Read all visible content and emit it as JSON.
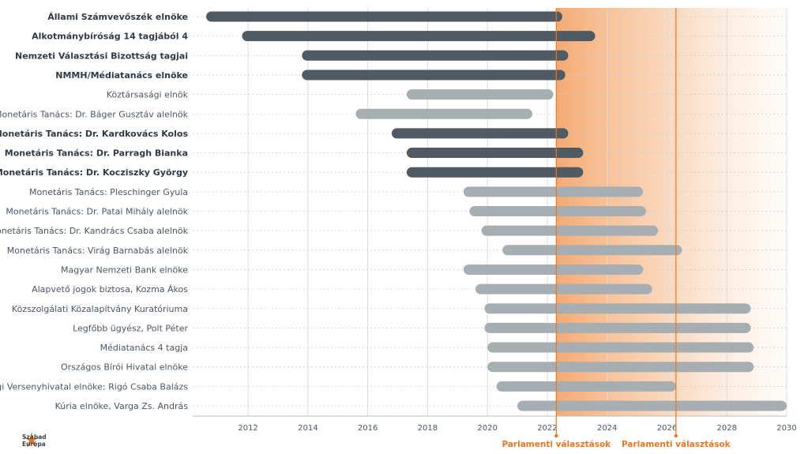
{
  "chart_data": {
    "type": "bar",
    "orientation": "horizontal-range",
    "title": "",
    "xlabel": "",
    "ylabel": "",
    "xlim": [
      2010,
      2030
    ],
    "x_ticks": [
      2012,
      2014,
      2016,
      2018,
      2020,
      2022,
      2024,
      2026,
      2028,
      2030
    ],
    "grid": true,
    "colors": {
      "bold_bar": "#4f5a63",
      "light_bar": "#a7aeb1",
      "future_shade": "#f3a66b",
      "annotation_line": "#e87722"
    },
    "future_shade_start": 2022.3,
    "rows": [
      {
        "label": "Állami Számvevőszék elnöke",
        "start": 2010.6,
        "end": 2022.5,
        "bold": true
      },
      {
        "label": "Alkotmánybíróság 14 tagjából 4",
        "start": 2011.8,
        "end": 2023.6,
        "bold": true
      },
      {
        "label": "Nemzeti Választási Bizottság tagjai",
        "start": 2013.8,
        "end": 2022.7,
        "bold": true
      },
      {
        "label": "NMMH/Médiatanács elnöke",
        "start": 2013.8,
        "end": 2022.6,
        "bold": true
      },
      {
        "label": "Köztársasági elnök",
        "start": 2017.3,
        "end": 2022.2,
        "bold": false
      },
      {
        "label": "Monetáris Tanács: Dr. Báger Gusztáv alelnök",
        "start": 2015.6,
        "end": 2021.5,
        "bold": false
      },
      {
        "label": "Monetáris Tanács: Dr. Kardkovács Kolos",
        "start": 2016.8,
        "end": 2022.7,
        "bold": true
      },
      {
        "label": "Monetáris Tanács: Dr. Parragh Bianka",
        "start": 2017.3,
        "end": 2023.2,
        "bold": true
      },
      {
        "label": "Monetáris Tanács: Dr. Kocziszky György",
        "start": 2017.3,
        "end": 2023.2,
        "bold": true
      },
      {
        "label": "Monetáris Tanács: Pleschinger Gyula",
        "start": 2019.2,
        "end": 2025.2,
        "bold": false
      },
      {
        "label": "Monetáris Tanács: Dr. Patai Mihály alelnök",
        "start": 2019.4,
        "end": 2025.3,
        "bold": false
      },
      {
        "label": "Monetáris Tanács: Dr. Kandrács Csaba alelnök",
        "start": 2019.8,
        "end": 2025.7,
        "bold": false
      },
      {
        "label": "Monetáris Tanács: Virág Barnabás alelnök",
        "start": 2020.5,
        "end": 2026.5,
        "bold": false
      },
      {
        "label": "Magyar Nemzeti Bank elnöke",
        "start": 2019.2,
        "end": 2025.2,
        "bold": false
      },
      {
        "label": "Alapvető jogok biztosa, Kozma Ákos",
        "start": 2019.6,
        "end": 2025.5,
        "bold": false
      },
      {
        "label": "Közszolgálati Közalapítvány Kuratóriuma",
        "start": 2019.9,
        "end": 2028.8,
        "bold": false
      },
      {
        "label": "Legfőbb ügyész, Polt Péter",
        "start": 2019.9,
        "end": 2028.8,
        "bold": false
      },
      {
        "label": "Médiatanács 4 tagja",
        "start": 2020.0,
        "end": 2028.9,
        "bold": false
      },
      {
        "label": "Országos Bírói Hivatal elnöke",
        "start": 2020.0,
        "end": 2028.9,
        "bold": false
      },
      {
        "label": "Gazdasági Versenyhivatal elnöke: Rigó Csaba Balázs",
        "start": 2020.3,
        "end": 2026.3,
        "bold": false
      },
      {
        "label": "Kúria elnöke, Varga Zs. András",
        "start": 2021.0,
        "end": 2030.0,
        "bold": false
      }
    ],
    "annotations": [
      {
        "x": 2022.3,
        "label": "Parlamenti választások"
      },
      {
        "x": 2026.3,
        "label": "Parlamenti választások"
      }
    ]
  },
  "logo": {
    "line1": "Szabad",
    "line2": "Európa"
  }
}
